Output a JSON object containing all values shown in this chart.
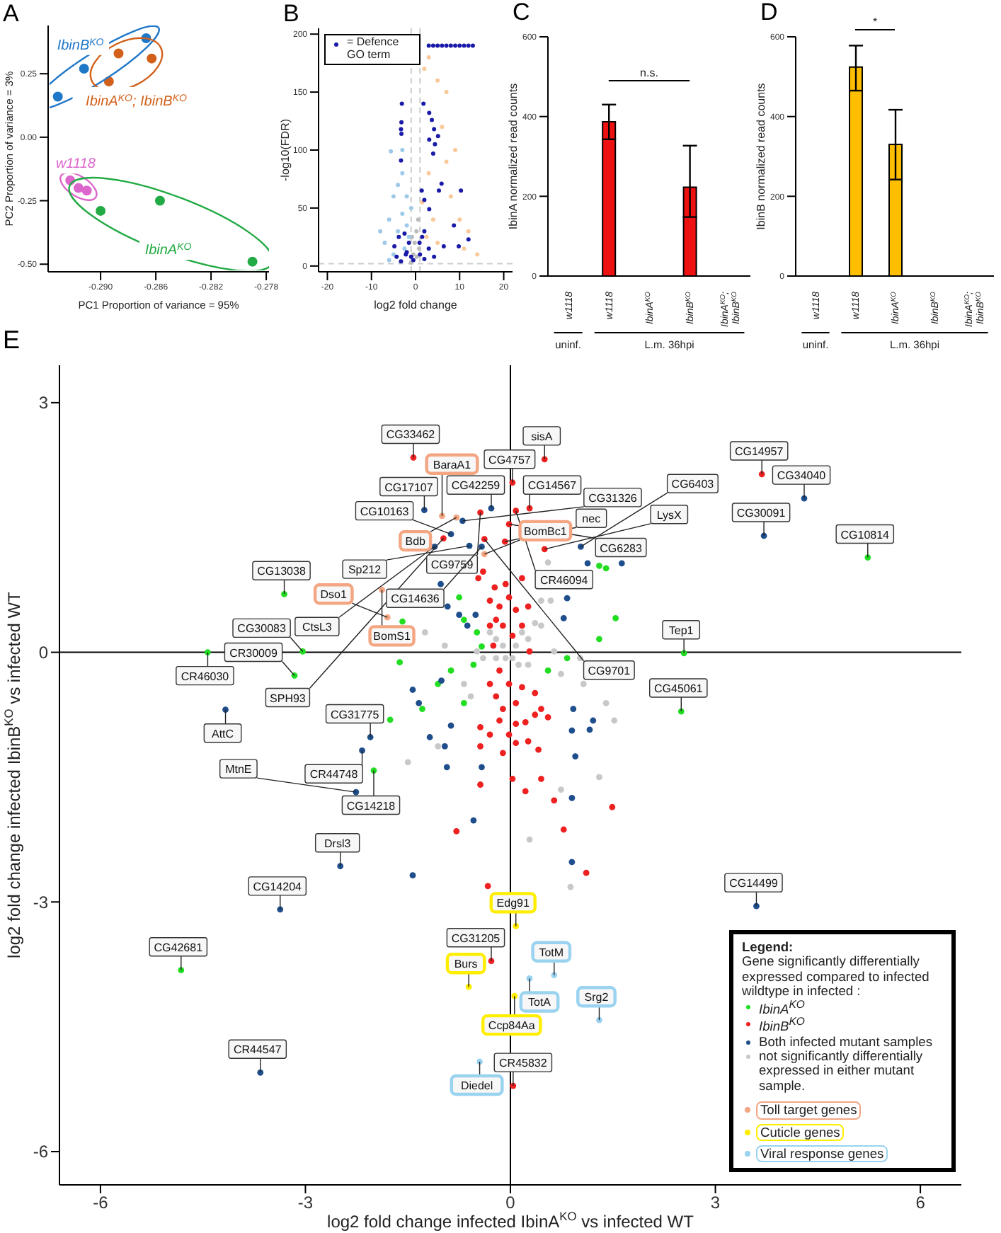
{
  "chart_data": [
    {
      "type": "scatter",
      "title": "A",
      "xlabel": "PC1  Proportion of variance = 95%",
      "ylabel": "PC2  Proportion of variance = 3%",
      "xlim": [
        -0.2938,
        -0.2778
      ],
      "ylim": [
        -0.53,
        0.44
      ],
      "xticks": [
        {
          "value": -0.29,
          "label": "-0.290"
        },
        -0.286,
        -0.282,
        -0.278
      ],
      "yticks": [
        {
          "value": -0.5,
          "label": "-0.50"
        },
        -0.25,
        {
          "value": 0,
          "label": "0.00"
        },
        0.25
      ],
      "legend": false,
      "marker": "circle",
      "series": [
        {
          "name": "IbinB$^{KO}$",
          "color": "#1f77c8",
          "x": [
            -0.2931,
            -0.2912,
            -0.2867
          ],
          "values": [
            0.16,
            0.27,
            0.39
          ]
        },
        {
          "name": "IbinA$^{KO}$; IbinB$^{KO}$",
          "color": "#d2601a",
          "x": [
            -0.2894,
            -0.2887,
            -0.2863
          ],
          "values": [
            0.22,
            0.33,
            0.31
          ]
        },
        {
          "name": "w1118",
          "color": "#dd66cc",
          "x": [
            -0.2922,
            -0.2916,
            -0.291
          ],
          "values": [
            -0.17,
            -0.2,
            -0.21
          ]
        },
        {
          "name": "IbinA$^{KO}$",
          "color": "#22aa44",
          "x": [
            -0.29,
            -0.2857,
            -0.279
          ],
          "values": [
            -0.29,
            -0.25,
            -0.49
          ]
        }
      ]
    },
    {
      "type": "scatter",
      "title": "B",
      "xlabel": "log2 fold change",
      "ylabel": "-log10(FDR)",
      "xlim": [
        -22,
        22
      ],
      "ylim": [
        -5,
        205
      ],
      "xticks": [
        -20,
        -10,
        0,
        10,
        20
      ],
      "yticks": [
        0,
        50,
        100,
        150,
        200
      ],
      "legend": "top left",
      "marker": "circle",
      "ref_lines": [
        {
          "axis": "x",
          "value": -1,
          "color": "#cccccc",
          "line_style": "dashed"
        },
        {
          "axis": "x",
          "value": 1,
          "color": "#cccccc",
          "line_style": "dashed"
        },
        {
          "axis": "y",
          "value": 2,
          "color": "#cccccc",
          "line_style": "dashed"
        }
      ],
      "series": [
        {
          "color": "#bbbbbb",
          "x": [
            -0.5,
            0.3,
            -1,
            0.8,
            0.2,
            -0.2,
            0.6,
            -0.8
          ],
          "values": [
            10,
            8,
            3,
            15,
            30,
            20,
            40,
            25
          ]
        },
        {
          "color": "#9ec9e8",
          "x": [
            -5,
            -4,
            -6,
            -3,
            -7,
            -2,
            -4,
            -3,
            -5,
            -6,
            -1,
            -8,
            -3,
            -2,
            -5.6,
            -2.5,
            -1.5
          ],
          "values": [
            60,
            70,
            40,
            45,
            20,
            35,
            30,
            80,
            10,
            5,
            50,
            30,
            100,
            60,
            99,
            15,
            25
          ]
        },
        {
          "color": "#f9c99a",
          "x": [
            2,
            5,
            7,
            3,
            6,
            8,
            10,
            4,
            12,
            7,
            5,
            9,
            11,
            14,
            3,
            1.5,
            2.5
          ],
          "values": [
            170,
            160,
            150,
            80,
            120,
            60,
            40,
            40,
            30,
            90,
            20,
            100,
            15,
            10,
            180,
            55,
            25
          ]
        },
        {
          "name": "= Defence GO term",
          "color": "#1a1aa8",
          "x": [
            1.8,
            3.1,
            3.7,
            4.2,
            3.1,
            4.4,
            5.1,
            4,
            5.9,
            5.3,
            1.4,
            2,
            3.1,
            10.3,
            8.7,
            12,
            9.8,
            6.4,
            4.2,
            2,
            0.9,
            3,
            4,
            5,
            6,
            7,
            8,
            9,
            10,
            11,
            12,
            13,
            -3.1,
            -3.2,
            -3.3,
            -3.2,
            -3.3,
            -4.8,
            -4.3,
            -3.3,
            -2.2,
            -3.8,
            -2,
            -1.5,
            -1,
            -2.5,
            -0.5,
            1,
            1.5,
            2,
            3
          ],
          "values": [
            140,
            132,
            126,
            118,
            109,
            105,
            112,
            97,
            71,
            65,
            65,
            57,
            49,
            65,
            35,
            23,
            17,
            17,
            8,
            6,
            20,
            190,
            190,
            190,
            190,
            190,
            190,
            190,
            190,
            190,
            190,
            190,
            140,
            124,
            118,
            114,
            91,
            17,
            8,
            4,
            10,
            25,
            12,
            20,
            8,
            28,
            5,
            10,
            25,
            30,
            15
          ]
        }
      ]
    },
    {
      "type": "bar",
      "title": "C",
      "ylabel": "IbinA normalized read counts",
      "categories": [
        "w1118",
        "w1118",
        "IbinA$^{KO}$",
        "IbinB$^{KO}$",
        "IbinA$^{KO}$; IbinB$^{KO}$"
      ],
      "values": [
        null,
        387,
        0,
        223,
        0
      ],
      "errors": [
        null,
        [
          343,
          430
        ],
        null,
        [
          148,
          327
        ],
        null
      ],
      "color": "#ee1111",
      "ylim": [
        0,
        600
      ],
      "yticks": [
        0,
        200,
        400,
        600
      ],
      "annotations": [
        "n.s.",
        "uninf.",
        "L.m. 36hpi"
      ]
    },
    {
      "type": "bar",
      "title": "D",
      "ylabel": "IbinB normalized read counts",
      "categories": [
        "w1118",
        "w1118",
        "IbinA$^{KO}$",
        "IbinB$^{KO}$",
        "IbinA$^{KO}$; IbinB$^{KO}$"
      ],
      "values": [
        null,
        524,
        330,
        null,
        null
      ],
      "errors": [
        null,
        [
          465,
          578
        ],
        [
          242,
          417
        ],
        null,
        null
      ],
      "color": "#ffbf00",
      "ylim": [
        0,
        600
      ],
      "yticks": [
        0,
        200,
        400,
        600
      ],
      "annotations": [
        "*",
        "uninf.",
        "L.m. 36hpi"
      ]
    },
    {
      "type": "scatter",
      "title": "E",
      "xlabel": "log2 fold change infected IbinA$^{KO}$ vs infected WT",
      "ylabel": "log2 fold change infected IbinB$^{KO}$ vs infected WT",
      "xlim": [
        -6.6,
        6.6
      ],
      "ylim": [
        -6.4,
        3.45
      ],
      "xticks": [
        -6,
        -3,
        0,
        3,
        6
      ],
      "yticks": [
        -6,
        -3,
        0,
        3
      ],
      "legend": "bottom right",
      "legend_title": "Legend:\nGene significantly differentially expressed compared to infected wildtype in infected :",
      "marker": "circle",
      "ref_lines": [
        {
          "axis": "x",
          "value": 0,
          "color": "#000000"
        },
        {
          "axis": "y",
          "value": 0,
          "color": "#000000"
        }
      ],
      "series": [
        {
          "name": "IbinA$^{KO}$",
          "color": "#22dd22",
          "x": [
            -1.58,
            -0.75,
            -0.68,
            -0.49,
            -0.42,
            -0.54,
            -0.87,
            -1.62,
            -1.06,
            -0.68,
            1.4,
            1.3,
            1.54,
            1.3,
            0.55,
            0.83,
            -1.76,
            -1.29,
            5.23,
            2.54,
            2.5,
            -4.43,
            -3.31,
            -3.04,
            -3.16,
            -2,
            -4.82
          ],
          "values": [
            0.37,
            0.66,
            0.39,
            0.24,
            0.07,
            -0.15,
            -0.22,
            -0.12,
            -0.38,
            -0.61,
            1.01,
            1.04,
            0.41,
            0.16,
            -0.22,
            -0.07,
            -0.81,
            -0.68,
            1.14,
            -0.01,
            -0.71,
            0,
            0.7,
            0.01,
            -0.28,
            -1.42,
            -3.82
          ],
          "value_labels": [
            null,
            null,
            null,
            null,
            null,
            null,
            null,
            null,
            null,
            null,
            null,
            null,
            null,
            null,
            null,
            null,
            null,
            null,
            "CG10814",
            "Tep1",
            "CG45061",
            "CR46030",
            "CG13038",
            "CG30083",
            "CR30009",
            "CG14218",
            "CG42681"
          ]
        },
        {
          "name": "IbinB$^{KO}$",
          "color": "#ee2020",
          "x": [
            -0.4,
            -0.47,
            -0.23,
            -0.07,
            0.17,
            -0.3,
            -0.16,
            -0.02,
            0.08,
            0.26,
            -0.21,
            -0.3,
            -0.11,
            0.17,
            0.03,
            -0.25,
            0.28,
            -0.16,
            -0.3,
            -0.02,
            0.17,
            -0.21,
            0.08,
            0.36,
            -0.11,
            0.22,
            -0.3,
            -0.02,
            0.26,
            0.45,
            -0.44,
            -0.16,
            0.08,
            0.36,
            0.55,
            -0.44,
            -0.11,
            0.08,
            0.41,
            -0.44,
            0.03,
            0.22,
            0.45,
            0.64,
            0.78,
            1.11,
            1.49,
            -0.79,
            -0.33,
            3.68,
            -1.42,
            -0.98,
            -0.44,
            -0.38,
            0.03,
            0.5,
            0.28,
            0.08,
            -0.02,
            -0.08,
            0.5,
            -0.28,
            0.04
          ],
          "values": [
            0.97,
            0.89,
            0.78,
            0.82,
            0.89,
            0.62,
            0.55,
            0.66,
            0.51,
            0.55,
            0.39,
            0.32,
            0.32,
            0.32,
            0.2,
            0.08,
            0.01,
            -0.22,
            -0.38,
            -0.38,
            -0.42,
            -0.53,
            -0.61,
            -0.49,
            -0.68,
            -0.84,
            -0.99,
            -0.99,
            -1.07,
            -0.68,
            -0.9,
            -0.82,
            -0.86,
            -0.75,
            -0.78,
            -1.13,
            -1.21,
            -1.09,
            -1.17,
            -1.59,
            -1.52,
            -1.67,
            -1.52,
            -1.78,
            -2.13,
            -2.65,
            -1.86,
            -2.15,
            -2.81,
            2.14,
            2.34,
            1.37,
            1.68,
            1.36,
            2.04,
            2.32,
            1.73,
            1.7,
            1.54,
            1.33,
            1.24,
            -3.71,
            -5.21
          ],
          "value_labels": [
            null,
            null,
            null,
            null,
            null,
            null,
            null,
            null,
            null,
            null,
            null,
            null,
            null,
            null,
            null,
            null,
            null,
            null,
            null,
            null,
            null,
            null,
            null,
            null,
            null,
            null,
            null,
            null,
            null,
            null,
            null,
            null,
            null,
            null,
            null,
            null,
            null,
            null,
            null,
            null,
            null,
            null,
            null,
            null,
            null,
            null,
            null,
            null,
            null,
            "CG14957",
            "CG33462",
            "SPH93",
            "CG9759",
            "CG9701",
            "CG4757",
            "sisA",
            "CG14567",
            "CR46094",
            "CG6283",
            "nec",
            "LysX",
            "CG31205",
            "CR45832"
          ]
        },
        {
          "name": "Both infected mutant samples",
          "color": "#1f4e8c",
          "x": [
            -1.02,
            -0.92,
            -0.75,
            -0.51,
            -0.63,
            0.78,
            1.13,
            1.63,
            0.83,
            -1.43,
            -1.34,
            -1.01,
            0.92,
            -0.87,
            1.16,
            -1.18,
            -0.96,
            -0.93,
            -0.42,
            0.9,
            0.95,
            0.9,
            0.9,
            -0.54,
            -1.43,
            1.21,
            4.3,
            3.71,
            -4.17,
            -1.26,
            -1.11,
            -0.87,
            -0.7,
            -0.6,
            -0.42,
            -0.28,
            1.03,
            -2.05,
            -2.17,
            -2.26,
            -2.49,
            -3.37,
            -3.66,
            3.6
          ],
          "values": [
            0.82,
            0.55,
            0.45,
            0.45,
            0.32,
            0.41,
            1.07,
            1.07,
            0.65,
            -0.45,
            -0.61,
            -0.34,
            -0.68,
            -0.88,
            -0.93,
            -1.02,
            -1.13,
            -1.38,
            -1.38,
            -0.94,
            -1.25,
            -1.75,
            -2.52,
            -2.02,
            -2.68,
            -0.82,
            1.85,
            1.4,
            -0.69,
            1.71,
            1.27,
            1.42,
            1.58,
            1.28,
            1.27,
            1.73,
            1.27,
            -1.02,
            -1.18,
            -1.68,
            -2.57,
            -3.09,
            -5.05,
            -3.05
          ],
          "value_labels": [
            null,
            null,
            null,
            null,
            null,
            null,
            null,
            null,
            null,
            null,
            null,
            null,
            null,
            null,
            null,
            null,
            null,
            null,
            null,
            null,
            null,
            null,
            null,
            null,
            null,
            null,
            "CG34040",
            "CG30091",
            "AttC",
            "CG17107",
            "CtsL3",
            "CG10163",
            "CG31326",
            "Sp212",
            "CG14636",
            "CG42259",
            "CG6403",
            "CG31775",
            "CR44748",
            "MtnE",
            "Drsl3",
            "CG14204",
            "CR44547",
            "CG14499"
          ]
        },
        {
          "name": "not significantly differentially expressed in either mutant sample.",
          "color": "#c8c8c8",
          "x": [
            -0.3,
            -0.21,
            -0.11,
            0.08,
            0.17,
            0.26,
            0.03,
            0.12,
            -0.07,
            0.26,
            0.45,
            0.45,
            0.59,
            0.36,
            -0.21,
            -0.4,
            -0.49,
            0.64,
            0.74,
            -0.58,
            -0.68,
            -0.96,
            -1.25,
            0.55,
            1.02,
            1.4,
            1.07,
            -1.5,
            -1.06,
            0.74,
            1.3,
            1.52,
            0.28,
            0.88
          ],
          "values": [
            0.24,
            0.16,
            0.08,
            0.08,
            0.24,
            0.16,
            -0.07,
            -0.15,
            -0.07,
            -0.15,
            0.32,
            0.62,
            0.62,
            0.35,
            -0.07,
            -0.07,
            0.01,
            0.01,
            -0.26,
            -0.53,
            -0.38,
            0.08,
            0.24,
            1.08,
            -0.07,
            -0.61,
            -0.38,
            -1.32,
            -1.13,
            -1.65,
            -1.5,
            -0.82,
            -2.25,
            -2.82
          ]
        },
        {
          "name": "Toll target genes",
          "color": "#f4a582",
          "x": [
            -1.88,
            -1.8,
            -1,
            -0.79,
            -0.38
          ],
          "values": [
            0.75,
            0.42,
            1.64,
            1.62,
            1.18
          ],
          "value_labels": [
            "BomS1",
            "Dso1",
            "BaraA1",
            "Bdb",
            "BomBc1"
          ]
        },
        {
          "name": "Cuticle genes",
          "color": "#ffee00",
          "x": [
            0.08,
            -0.61,
            0.06
          ],
          "values": [
            -3.29,
            -4.02,
            -4.13
          ],
          "value_labels": [
            "Edg91",
            "Burs",
            "Ccp84Aa"
          ]
        },
        {
          "name": "Viral response genes",
          "color": "#99d3f0",
          "x": [
            0.28,
            0.64,
            1.3,
            -0.45
          ],
          "values": [
            -3.92,
            -3.88,
            -4.42,
            -4.92
          ],
          "value_labels": [
            "TotA",
            "TotM",
            "Srg2",
            "Diedel"
          ]
        }
      ]
    }
  ]
}
